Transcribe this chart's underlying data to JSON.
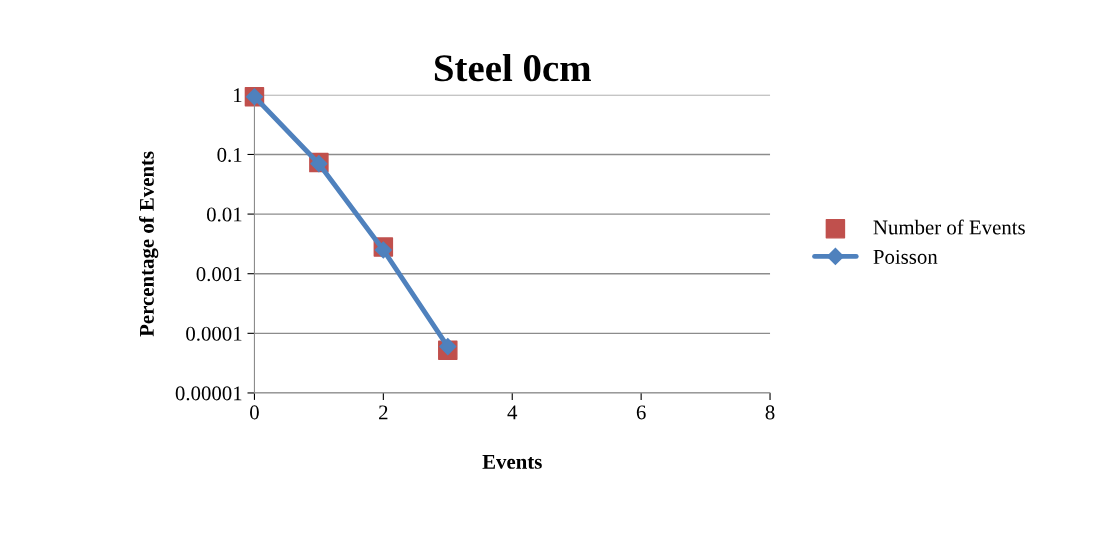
{
  "chart_data": {
    "type": "scatter",
    "title": "Steel 0cm",
    "xlabel": "Events",
    "ylabel": "Percentage of Events",
    "log": "y",
    "grid": "y",
    "legend": "right",
    "xlim": [
      0,
      8
    ],
    "xticks": [
      0,
      2,
      4,
      6,
      8
    ],
    "ylim": [
      1e-05,
      1
    ],
    "yticks": [
      {
        "value": 1e-05,
        "label": "0.00001"
      },
      0.0001,
      0.001,
      0.01,
      0.1,
      1
    ],
    "series": [
      {
        "name": "Number of Events",
        "marker": "square",
        "color": "#c0504d",
        "x": [
          0,
          1,
          2,
          3
        ],
        "values": [
          0.93,
          0.073,
          0.0028,
          5.2e-05
        ]
      },
      {
        "name": "Poisson",
        "type": "line",
        "marker": "diamond",
        "line_style": "solid",
        "color": "#4f81bd",
        "x": [
          0,
          1,
          2,
          3
        ],
        "values": [
          0.93,
          0.07,
          0.0025,
          6e-05
        ]
      }
    ]
  }
}
